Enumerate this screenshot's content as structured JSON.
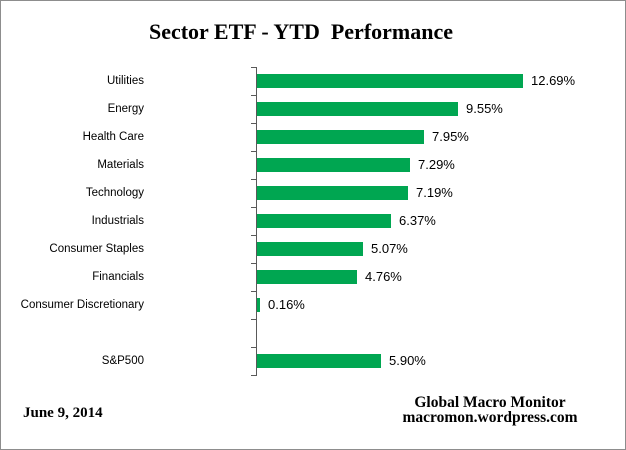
{
  "title": "Sector ETF - YTD  Performance",
  "chart_data": {
    "type": "bar",
    "orientation": "horizontal",
    "title": "Sector ETF - YTD  Performance",
    "bar_color": "#00A651",
    "axis_color": "#595959",
    "categories": [
      "Utilities",
      "Energy",
      "Health Care",
      "Materials",
      "Technology",
      "Industrials",
      "Consumer Staples",
      "Financials",
      "Consumer Discretionary",
      "",
      "S&P500"
    ],
    "values": [
      12.69,
      9.55,
      7.95,
      7.29,
      7.19,
      6.37,
      5.07,
      4.76,
      0.16,
      null,
      5.9
    ],
    "value_labels": [
      "12.69%",
      "9.55%",
      "7.95%",
      "7.29%",
      "7.19%",
      "6.37%",
      "5.07%",
      "4.76%",
      "0.16%",
      "",
      "5.90%"
    ],
    "xlabel": "",
    "ylabel": "",
    "xlim": [
      -5.4,
      17.6
    ],
    "grid": false,
    "legend": false,
    "data_labels": true
  },
  "footer": {
    "date": "June 9, 2014",
    "credit_line1": "Global Macro Monitor",
    "credit_line2": "macromon.wordpress.com"
  }
}
